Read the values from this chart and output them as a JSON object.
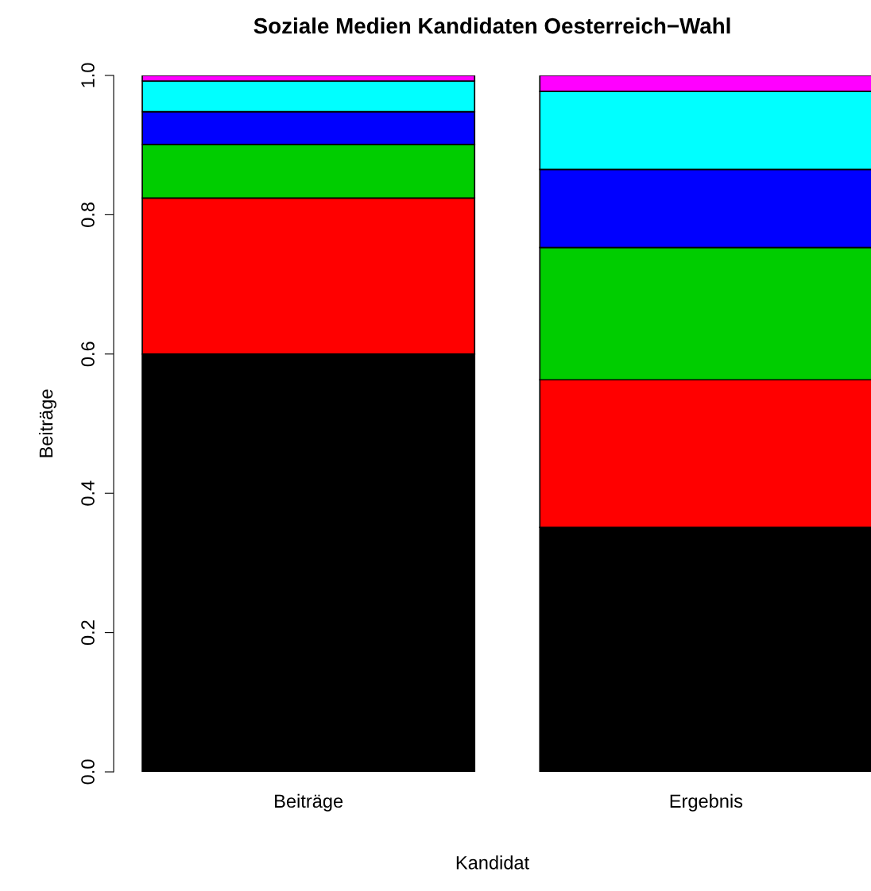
{
  "chart_data": {
    "type": "bar",
    "stacked": true,
    "title": "Soziale Medien Kandidaten Oesterreich−Wahl",
    "xlabel": "Kandidat",
    "ylabel": "Beiträge",
    "categories": [
      "Beiträge",
      "Ergebnis"
    ],
    "series": [
      {
        "color": "#000000",
        "values": [
          0.6,
          0.351
        ]
      },
      {
        "color": "#ff0000",
        "values": [
          0.224,
          0.212
        ]
      },
      {
        "color": "#00cd00",
        "values": [
          0.077,
          0.19
        ]
      },
      {
        "color": "#0000ff",
        "values": [
          0.047,
          0.112
        ]
      },
      {
        "color": "#00ffff",
        "values": [
          0.044,
          0.112
        ]
      },
      {
        "color": "#ff00ff",
        "values": [
          0.008,
          0.023
        ]
      }
    ],
    "ylim": [
      0,
      1
    ],
    "yticks": [
      {
        "value": 0,
        "label": "0.0"
      },
      0.2,
      0.4,
      0.6,
      0.8,
      {
        "value": 1,
        "label": "1.0"
      }
    ],
    "grid": false,
    "legend": false
  }
}
